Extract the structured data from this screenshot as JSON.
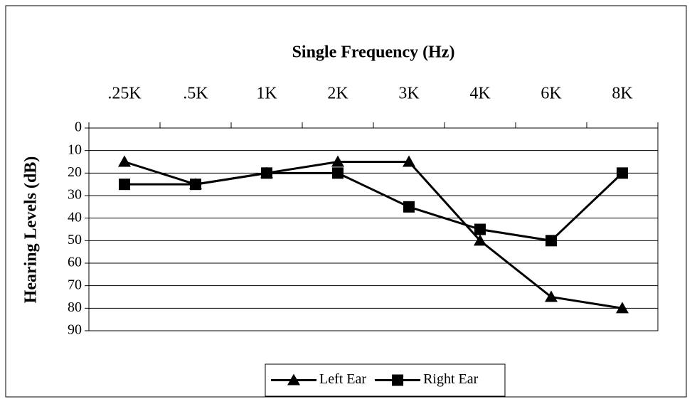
{
  "chart_data": {
    "type": "line",
    "title": "Single Frequency (Hz)",
    "y_label": "Hearing Levels (dB)",
    "categories": [
      ".25K",
      ".5K",
      "1K",
      "2K",
      "3K",
      "4K",
      "6K",
      "8K"
    ],
    "series": [
      {
        "name": "Left Ear",
        "color": "#000000",
        "marker": "triangle",
        "values": [
          15,
          25,
          20,
          15,
          15,
          50,
          75,
          80
        ]
      },
      {
        "name": "Right Ear",
        "color": "#000000",
        "marker": "square",
        "values": [
          25,
          25,
          20,
          20,
          35,
          45,
          50,
          20
        ]
      }
    ],
    "ylim": [
      0,
      90
    ],
    "yticks": [
      0,
      10,
      20,
      30,
      40,
      50,
      60,
      70,
      80,
      90
    ],
    "y_inverted": true,
    "x_axis_position": "top",
    "grid": true,
    "legend_position": "bottom"
  }
}
